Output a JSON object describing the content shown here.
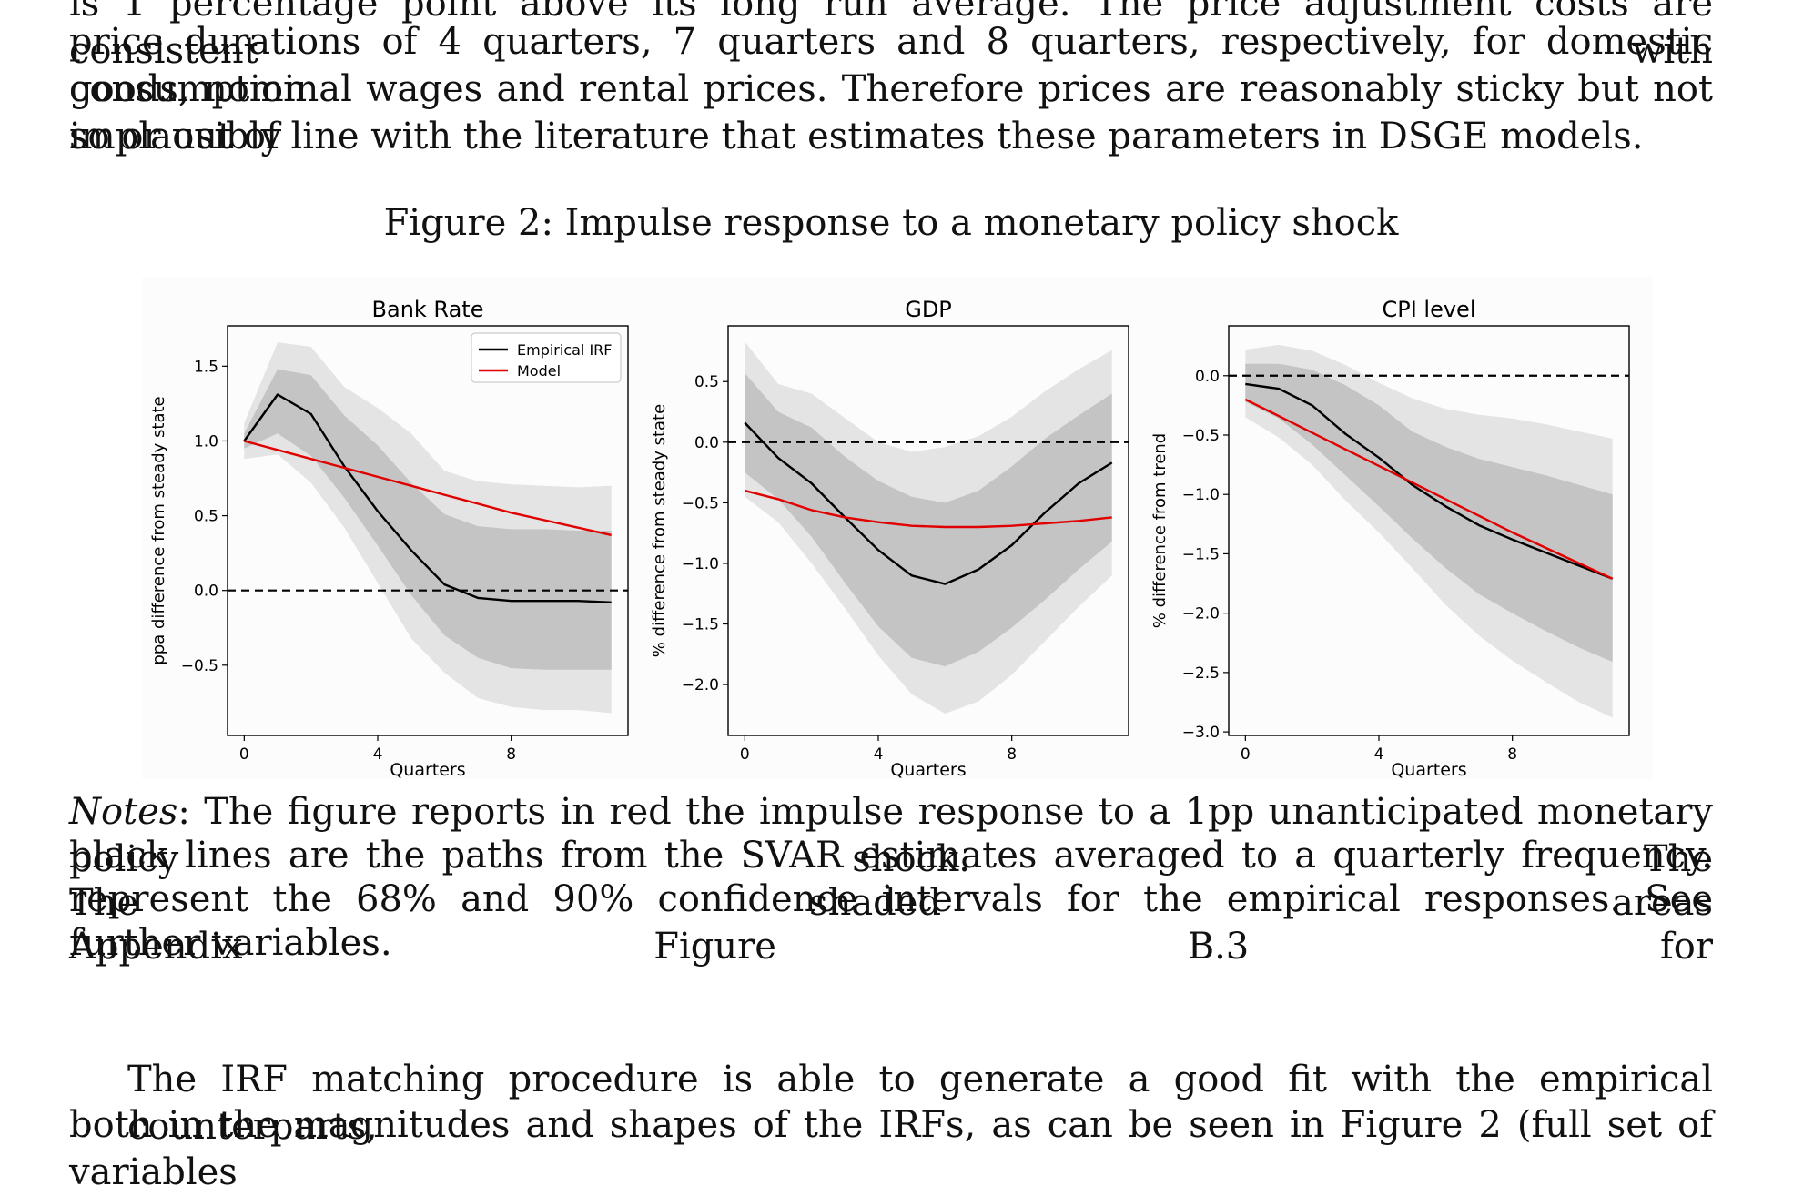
{
  "body_top": [
    "is 1 percentage point above its long run average. The price adjustment costs are consistent with",
    "price durations of 4 quarters, 7 quarters and 8 quarters, respectively, for domestic consumption",
    "goods, nominal wages and rental prices. Therefore prices are reasonably sticky but not implausibly",
    "so or out of line with the literature that estimates these parameters in DSGE models."
  ],
  "figure": {
    "caption": "Figure 2: Impulse response to a monetary policy shock"
  },
  "notes": {
    "label": "Notes",
    "line1_rest": ": The figure reports in red the impulse response to a 1pp unanticipated monetary policy shock. The",
    "lines": [
      "black lines are the paths from the SVAR estimates averaged to a quarterly frequency. The shaded areas",
      "represent the 68% and 90% confidence intervals for the empirical responses. See Appendix Figure B.3 for",
      "further variables."
    ]
  },
  "body_bottom": [
    "The IRF matching procedure is able to generate a good fit with the empirical counterparts,",
    "both in the magnitudes and shapes of the IRFs, as can be seen in Figure 2 (full set of variables"
  ],
  "chart_data": [
    {
      "type": "line",
      "title": "Bank Rate",
      "xlabel": "Quarters",
      "ylabel": "ppa difference from steady state",
      "x": [
        0,
        1,
        2,
        3,
        4,
        5,
        6,
        7,
        8,
        9,
        10,
        11
      ],
      "xticks": [
        0,
        4,
        8
      ],
      "yticks": [
        1.5,
        1.0,
        0.5,
        0.0,
        -0.5
      ],
      "xlim": [
        -0.5,
        11.5
      ],
      "ylim": [
        -0.97,
        1.77
      ],
      "legend": {
        "position": "top-right",
        "entries": [
          "Empirical IRF",
          "Model"
        ]
      },
      "series": [
        {
          "name": "Empirical IRF",
          "color": "#000000",
          "values": [
            1.0,
            1.31,
            1.18,
            0.83,
            0.53,
            0.27,
            0.04,
            -0.05,
            -0.07,
            -0.07,
            -0.07,
            -0.08
          ]
        },
        {
          "name": "Model",
          "color": "#e00000",
          "values": [
            1.0,
            0.94,
            0.88,
            0.82,
            0.76,
            0.7,
            0.64,
            0.58,
            0.52,
            0.47,
            0.42,
            0.37
          ]
        }
      ],
      "bands": [
        {
          "name": "90%",
          "color": "#e4e4e4",
          "lower": [
            0.88,
            0.91,
            0.72,
            0.42,
            0.05,
            -0.32,
            -0.55,
            -0.72,
            -0.78,
            -0.8,
            -0.8,
            -0.82
          ],
          "upper": [
            1.12,
            1.66,
            1.63,
            1.36,
            1.22,
            1.05,
            0.8,
            0.73,
            0.71,
            0.7,
            0.69,
            0.7
          ]
        },
        {
          "name": "68%",
          "color": "#c4c4c4",
          "lower": [
            0.95,
            1.05,
            0.9,
            0.62,
            0.3,
            -0.03,
            -0.3,
            -0.45,
            -0.52,
            -0.53,
            -0.53,
            -0.53
          ]
        },
        {
          "name": "68%-upper",
          "color": "#c4c4c4",
          "upper": [
            1.05,
            1.48,
            1.44,
            1.17,
            0.97,
            0.72,
            0.51,
            0.43,
            0.41,
            0.41,
            0.4,
            0.4
          ]
        }
      ],
      "reference_line": 0.0
    },
    {
      "type": "line",
      "title": "GDP",
      "xlabel": "Quarters",
      "ylabel": "% difference from steady state",
      "x": [
        0,
        1,
        2,
        3,
        4,
        5,
        6,
        7,
        8,
        9,
        10,
        11
      ],
      "xticks": [
        0,
        4,
        8
      ],
      "yticks": [
        0.5,
        0.0,
        -0.5,
        -1.0,
        -1.5,
        -2.0
      ],
      "xlim": [
        -0.5,
        11.5
      ],
      "ylim": [
        -2.42,
        0.96
      ],
      "series": [
        {
          "name": "Empirical IRF",
          "color": "#000000",
          "values": [
            0.16,
            -0.13,
            -0.34,
            -0.62,
            -0.89,
            -1.1,
            -1.17,
            -1.05,
            -0.85,
            -0.58,
            -0.34,
            -0.17
          ]
        },
        {
          "name": "Model",
          "color": "#e00000",
          "values": [
            -0.4,
            -0.47,
            -0.56,
            -0.62,
            -0.66,
            -0.69,
            -0.7,
            -0.7,
            -0.69,
            -0.67,
            -0.65,
            -0.62
          ]
        }
      ],
      "bands": [
        {
          "name": "90%",
          "color": "#e4e4e4",
          "lower": [
            -0.45,
            -0.66,
            -1.0,
            -1.37,
            -1.76,
            -2.08,
            -2.24,
            -2.14,
            -1.92,
            -1.64,
            -1.36,
            -1.1
          ],
          "upper": [
            0.83,
            0.48,
            0.4,
            0.2,
            0.0,
            -0.08,
            -0.04,
            0.05,
            0.21,
            0.42,
            0.6,
            0.76
          ]
        },
        {
          "name": "68%",
          "color": "#c4c4c4",
          "lower": [
            -0.25,
            -0.47,
            -0.78,
            -1.16,
            -1.52,
            -1.78,
            -1.85,
            -1.73,
            -1.53,
            -1.3,
            -1.05,
            -0.82
          ],
          "upper": [
            0.57,
            0.25,
            0.12,
            -0.12,
            -0.32,
            -0.45,
            -0.5,
            -0.4,
            -0.2,
            0.03,
            0.22,
            0.4
          ]
        }
      ],
      "reference_line": 0.0
    },
    {
      "type": "line",
      "title": "CPI level",
      "xlabel": "Quarters",
      "ylabel": "% difference from trend",
      "x": [
        0,
        1,
        2,
        3,
        4,
        5,
        6,
        7,
        8,
        9,
        10,
        11
      ],
      "xticks": [
        0,
        4,
        8
      ],
      "yticks": [
        0.0,
        -0.5,
        -1.0,
        -1.5,
        -2.0,
        -2.5,
        -3.0
      ],
      "xlim": [
        -0.5,
        11.5
      ],
      "ylim": [
        -3.03,
        0.42
      ],
      "series": [
        {
          "name": "Empirical IRF",
          "color": "#000000",
          "values": [
            -0.07,
            -0.11,
            -0.25,
            -0.49,
            -0.69,
            -0.92,
            -1.1,
            -1.26,
            -1.38,
            -1.49,
            -1.6,
            -1.71
          ]
        },
        {
          "name": "Model",
          "color": "#e00000",
          "values": [
            -0.2,
            -0.34,
            -0.48,
            -0.62,
            -0.76,
            -0.9,
            -1.04,
            -1.18,
            -1.32,
            -1.45,
            -1.58,
            -1.71
          ]
        }
      ],
      "bands": [
        {
          "name": "90%",
          "color": "#e4e4e4",
          "lower": [
            -0.35,
            -0.52,
            -0.75,
            -1.05,
            -1.32,
            -1.62,
            -1.93,
            -2.19,
            -2.4,
            -2.58,
            -2.75,
            -2.88
          ],
          "upper": [
            0.22,
            0.26,
            0.21,
            0.09,
            -0.06,
            -0.19,
            -0.28,
            -0.33,
            -0.36,
            -0.41,
            -0.47,
            -0.53
          ]
        },
        {
          "name": "68%",
          "color": "#c4c4c4",
          "lower": [
            -0.22,
            -0.36,
            -0.58,
            -0.84,
            -1.1,
            -1.37,
            -1.62,
            -1.84,
            -2.0,
            -2.15,
            -2.29,
            -2.41
          ],
          "upper": [
            0.1,
            0.1,
            0.05,
            -0.08,
            -0.25,
            -0.47,
            -0.6,
            -0.7,
            -0.77,
            -0.84,
            -0.92,
            -1.0
          ]
        }
      ],
      "reference_line": 0.0
    }
  ]
}
